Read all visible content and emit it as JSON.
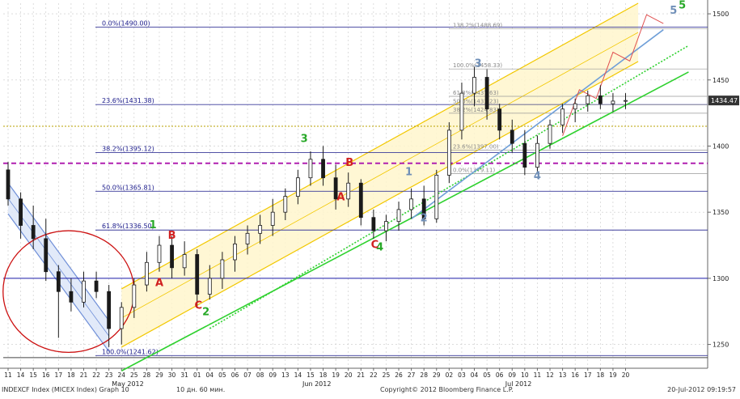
{
  "chart_data": {
    "type": "candlestick",
    "title": "",
    "xlabel": "",
    "ylabel": "",
    "ylim": [
      1232,
      1508
    ],
    "y_ticks": [
      1250,
      1300,
      1350,
      1400,
      1450,
      1500
    ],
    "last_price": 1434.47,
    "last_price_label": "1434.47",
    "dates": [
      "11",
      "14",
      "15",
      "16",
      "17",
      "18",
      "21",
      "22",
      "23",
      "24",
      "25",
      "28",
      "29",
      "30",
      "31",
      "01",
      "04",
      "05",
      "06",
      "07",
      "08",
      "09",
      "13",
      "14",
      "15",
      "18",
      "19",
      "20",
      "21",
      "22",
      "25",
      "26",
      "27",
      "28",
      "29",
      "02",
      "03",
      "04",
      "05",
      "06",
      "09",
      "10",
      "11",
      "12",
      "13",
      "16",
      "17",
      "18",
      "19",
      "20"
    ],
    "month_labels": [
      {
        "label": "May 2012",
        "at": 9.5
      },
      {
        "label": "Jun 2012",
        "at": 24.5
      },
      {
        "label": "Jul 2012",
        "at": 40.5
      }
    ],
    "candles": [
      {
        "o": 1382,
        "h": 1388,
        "l": 1355,
        "c": 1360
      },
      {
        "o": 1360,
        "h": 1365,
        "l": 1330,
        "c": 1340
      },
      {
        "o": 1340,
        "h": 1355,
        "l": 1322,
        "c": 1330
      },
      {
        "o": 1330,
        "h": 1345,
        "l": 1298,
        "c": 1305
      },
      {
        "o": 1305,
        "h": 1310,
        "l": 1255,
        "c": 1290
      },
      {
        "o": 1290,
        "h": 1300,
        "l": 1275,
        "c": 1282
      },
      {
        "o": 1282,
        "h": 1305,
        "l": 1278,
        "c": 1298
      },
      {
        "o": 1298,
        "h": 1305,
        "l": 1285,
        "c": 1290
      },
      {
        "o": 1290,
        "h": 1295,
        "l": 1248,
        "c": 1262
      },
      {
        "o": 1262,
        "h": 1282,
        "l": 1250,
        "c": 1278
      },
      {
        "o": 1278,
        "h": 1300,
        "l": 1270,
        "c": 1295
      },
      {
        "o": 1295,
        "h": 1320,
        "l": 1290,
        "c": 1312
      },
      {
        "o": 1312,
        "h": 1332,
        "l": 1305,
        "c": 1325
      },
      {
        "o": 1325,
        "h": 1332,
        "l": 1300,
        "c": 1308
      },
      {
        "o": 1308,
        "h": 1328,
        "l": 1302,
        "c": 1318
      },
      {
        "o": 1318,
        "h": 1322,
        "l": 1278,
        "c": 1288
      },
      {
        "o": 1288,
        "h": 1310,
        "l": 1284,
        "c": 1300
      },
      {
        "o": 1300,
        "h": 1320,
        "l": 1292,
        "c": 1314
      },
      {
        "o": 1314,
        "h": 1332,
        "l": 1305,
        "c": 1326
      },
      {
        "o": 1326,
        "h": 1340,
        "l": 1318,
        "c": 1334
      },
      {
        "o": 1334,
        "h": 1348,
        "l": 1326,
        "c": 1340
      },
      {
        "o": 1340,
        "h": 1360,
        "l": 1332,
        "c": 1350
      },
      {
        "o": 1350,
        "h": 1368,
        "l": 1344,
        "c": 1362
      },
      {
        "o": 1362,
        "h": 1382,
        "l": 1356,
        "c": 1376
      },
      {
        "o": 1376,
        "h": 1396,
        "l": 1370,
        "c": 1390
      },
      {
        "o": 1390,
        "h": 1400,
        "l": 1370,
        "c": 1376
      },
      {
        "o": 1376,
        "h": 1386,
        "l": 1352,
        "c": 1360
      },
      {
        "o": 1360,
        "h": 1380,
        "l": 1354,
        "c": 1372
      },
      {
        "o": 1372,
        "h": 1375,
        "l": 1340,
        "c": 1346
      },
      {
        "o": 1346,
        "h": 1352,
        "l": 1330,
        "c": 1336
      },
      {
        "o": 1336,
        "h": 1348,
        "l": 1328,
        "c": 1343
      },
      {
        "o": 1343,
        "h": 1358,
        "l": 1336,
        "c": 1352
      },
      {
        "o": 1352,
        "h": 1368,
        "l": 1345,
        "c": 1360
      },
      {
        "o": 1360,
        "h": 1370,
        "l": 1340,
        "c": 1345
      },
      {
        "o": 1345,
        "h": 1382,
        "l": 1342,
        "c": 1378
      },
      {
        "o": 1378,
        "h": 1418,
        "l": 1372,
        "c": 1412
      },
      {
        "o": 1412,
        "h": 1448,
        "l": 1405,
        "c": 1440
      },
      {
        "o": 1440,
        "h": 1460,
        "l": 1430,
        "c": 1452
      },
      {
        "o": 1452,
        "h": 1458,
        "l": 1420,
        "c": 1428
      },
      {
        "o": 1428,
        "h": 1432,
        "l": 1405,
        "c": 1412
      },
      {
        "o": 1412,
        "h": 1420,
        "l": 1395,
        "c": 1402
      },
      {
        "o": 1402,
        "h": 1412,
        "l": 1378,
        "c": 1384
      },
      {
        "o": 1384,
        "h": 1408,
        "l": 1380,
        "c": 1402
      },
      {
        "o": 1402,
        "h": 1420,
        "l": 1398,
        "c": 1416
      },
      {
        "o": 1416,
        "h": 1432,
        "l": 1410,
        "c": 1428
      },
      {
        "o": 1428,
        "h": 1436,
        "l": 1418,
        "c": 1432
      },
      {
        "o": 1432,
        "h": 1442,
        "l": 1426,
        "c": 1438
      },
      {
        "o": 1438,
        "h": 1446,
        "l": 1428,
        "c": 1432
      },
      {
        "o": 1432,
        "h": 1440,
        "l": 1426,
        "c": 1434
      },
      {
        "o": 1434,
        "h": 1440,
        "l": 1428,
        "c": 1434.47
      }
    ],
    "fib_levels": [
      {
        "label": "0.0%(1490.00)",
        "y": 1490.0
      },
      {
        "label": "23.6%(1431.38)",
        "y": 1431.38
      },
      {
        "label": "38.2%(1395.12)",
        "y": 1395.12
      },
      {
        "label": "50.0%(1365.81)",
        "y": 1365.81
      },
      {
        "label": "61.8%(1336.50)",
        "y": 1336.5
      },
      {
        "label": "100.0%(1241.62)",
        "y": 1241.62
      }
    ],
    "fib_levels_secondary": [
      {
        "label": "138.2%(1488.69)",
        "y": 1488.69
      },
      {
        "label": "100.0%(1458.33)",
        "y": 1458.33
      },
      {
        "label": "61.8%(1437.63)",
        "y": 1437.63
      },
      {
        "label": "50.0%(1431.23)",
        "y": 1431.23
      },
      {
        "label": "38.2%(1424.83)",
        "y": 1424.83
      },
      {
        "label": "23.6%(1397.00)",
        "y": 1397.0
      },
      {
        "label": "0.0%(1379.11)",
        "y": 1379.11
      }
    ],
    "horizontal_lines": [
      {
        "y": 1300,
        "color": "#1a1aa6",
        "style": "solid"
      },
      {
        "y": 1415,
        "color": "#b8a000",
        "style": "dotted"
      },
      {
        "y": 1387,
        "color": "#b020b0",
        "style": "dashed"
      },
      {
        "y": 1240,
        "color": "#444444",
        "style": "solid"
      }
    ],
    "channels": [
      {
        "name": "",
        "color": "#6f8fd8",
        "fill": "#dde6f8",
        "from": [
          0,
          1372
        ],
        "to": [
          8,
          1268
        ],
        "width": 38
      },
      {
        "name": "",
        "color": "#f2c800",
        "fill": "#fff6cc",
        "from": [
          9,
          1292
        ],
        "to": [
          50,
          1508
        ],
        "width": 72
      }
    ],
    "trend_lines": [
      {
        "color": "#2fd12f",
        "from": [
          9,
          1230
        ],
        "to": [
          54,
          1456
        ]
      },
      {
        "color": "#2fd12f",
        "from": [
          16,
          1262
        ],
        "to": [
          54,
          1476
        ],
        "style": "dotted"
      },
      {
        "color": "#6f9fd8",
        "from": [
          32,
          1345
        ],
        "to": [
          52,
          1488
        ]
      },
      {
        "color": "#e05050",
        "from": [
          44,
          1415
        ],
        "to": [
          52,
          1500
        ],
        "style": "zigzag"
      }
    ],
    "wave_labels": [
      {
        "text": "1",
        "x": 11.5,
        "y": 1338,
        "color": "#27a827"
      },
      {
        "text": "2",
        "x": 15.7,
        "y": 1272,
        "color": "#27a827"
      },
      {
        "text": "3",
        "x": 23.5,
        "y": 1403,
        "color": "#27a827"
      },
      {
        "text": "4",
        "x": 29.5,
        "y": 1321,
        "color": "#27a827"
      },
      {
        "text": "5",
        "x": 53.5,
        "y": 1504,
        "color": "#27a827"
      },
      {
        "text": "A",
        "x": 12.0,
        "y": 1294,
        "color": "#d02020"
      },
      {
        "text": "B",
        "x": 13.0,
        "y": 1330,
        "color": "#d02020"
      },
      {
        "text": "C",
        "x": 15.1,
        "y": 1277,
        "color": "#d02020"
      },
      {
        "text": "A",
        "x": 26.4,
        "y": 1359,
        "color": "#d02020"
      },
      {
        "text": "B",
        "x": 27.1,
        "y": 1385,
        "color": "#d02020"
      },
      {
        "text": "C",
        "x": 29.1,
        "y": 1323,
        "color": "#d02020"
      },
      {
        "text": "1",
        "x": 31.8,
        "y": 1378,
        "color": "#6f8fb8"
      },
      {
        "text": "2",
        "x": 33.0,
        "y": 1343,
        "color": "#6f8fb8"
      },
      {
        "text": "3",
        "x": 37.3,
        "y": 1460,
        "color": "#6f8fb8"
      },
      {
        "text": "4",
        "x": 42.0,
        "y": 1375,
        "color": "#6f8fb8"
      },
      {
        "text": "5",
        "x": 52.8,
        "y": 1500,
        "color": "#6f8fb8"
      }
    ],
    "ellipse": {
      "cx": 4.8,
      "cy": 1290,
      "rx": 5.2,
      "ry": 46,
      "color": "#cc1010"
    }
  },
  "footer": {
    "left": "INDEXCF Index (MICEX Index) Graph 10",
    "interval": "10 дн. 60 мин.",
    "copyright": "Copyright© 2012 Bloomberg Finance L.P.",
    "timestamp": "20-Jul-2012 09:19:57"
  },
  "colors": {
    "up": "#1a1a1a",
    "down": "#1a1a1a",
    "grid": "#c8c8c8",
    "axis": "#666666",
    "price_tag": "#333333"
  }
}
